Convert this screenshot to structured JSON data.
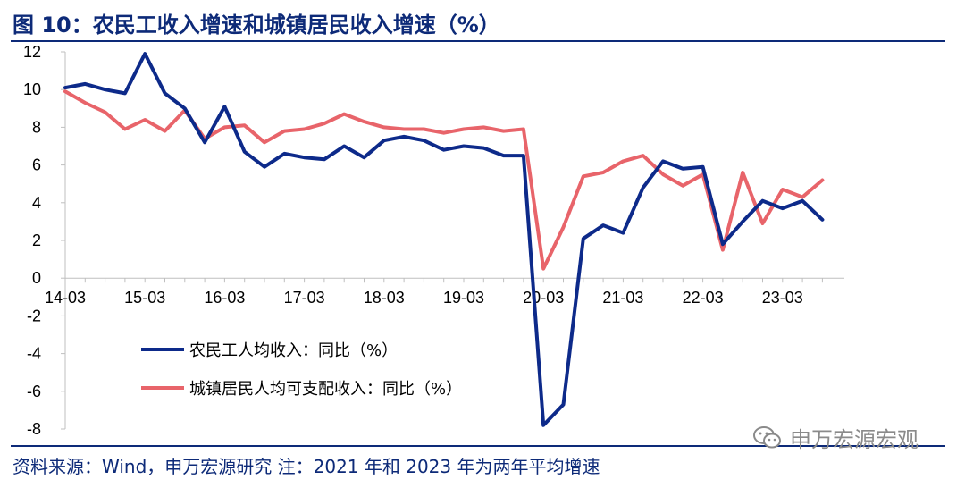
{
  "title": "图 10：农民工收入增速和城镇居民收入增速（%）",
  "source": "资料来源：Wind，申万宏源研究 注：2021 年和 2023 年为两年平均增速",
  "watermark": "申万宏源宏观",
  "colors": {
    "rural": "#0d2a8a",
    "urban": "#e8646a",
    "brand": "#0d2a78"
  },
  "chart_data": {
    "type": "line",
    "x_tick_labels": [
      "14-03",
      "15-03",
      "16-03",
      "17-03",
      "18-03",
      "19-03",
      "20-03",
      "21-03",
      "22-03",
      "23-03"
    ],
    "x_points_count": 39,
    "ylim": [
      -8,
      12
    ],
    "y_ticks": [
      -8,
      -6,
      -4,
      -2,
      0,
      2,
      4,
      6,
      8,
      10,
      12
    ],
    "legend_position": "lower-left",
    "grid": false,
    "series": [
      {
        "name": "农民工人均收入：同比（%）",
        "color": "#0d2a8a",
        "values": [
          10.1,
          10.3,
          10.0,
          9.8,
          11.9,
          9.8,
          9.0,
          7.2,
          9.1,
          6.7,
          5.9,
          6.6,
          6.4,
          6.3,
          7.0,
          6.4,
          7.3,
          7.5,
          7.3,
          6.8,
          7.0,
          6.9,
          6.5,
          6.5,
          -7.8,
          -6.7,
          2.1,
          2.8,
          2.4,
          4.8,
          6.2,
          5.8,
          5.9,
          1.8,
          3.0,
          4.1,
          3.7,
          4.1,
          3.1
        ]
      },
      {
        "name": "城镇居民人均可支配收入：同比（%）",
        "color": "#e8646a",
        "values": [
          9.9,
          9.3,
          8.8,
          7.9,
          8.4,
          7.8,
          8.9,
          7.4,
          8.0,
          8.1,
          7.2,
          7.8,
          7.9,
          8.2,
          8.7,
          8.3,
          8.0,
          7.9,
          7.9,
          7.7,
          7.9,
          8.0,
          7.8,
          7.9,
          0.5,
          2.7,
          5.4,
          5.6,
          6.2,
          6.5,
          5.5,
          4.9,
          5.5,
          1.5,
          5.6,
          2.9,
          4.7,
          4.3,
          5.2
        ]
      }
    ]
  }
}
